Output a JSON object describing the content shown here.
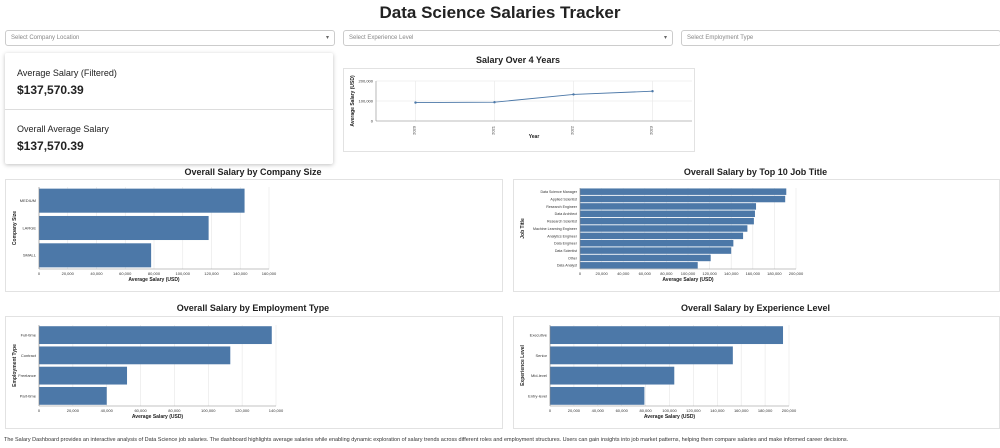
{
  "header": {
    "title": "Data Science Salaries Tracker"
  },
  "filters": [
    {
      "placeholder": "Select Company Location"
    },
    {
      "placeholder": "Select Experience Level"
    },
    {
      "placeholder": "Select Employment Type"
    }
  ],
  "kpis": {
    "filtered": {
      "label": "Average Salary (Filtered)",
      "value": "$137,570.39"
    },
    "overall": {
      "label": "Overall Average Salary",
      "value": "$137,570.39"
    }
  },
  "colors": {
    "bar": "#4c78a8",
    "line": "#4c78a8",
    "grid": "#e6e6e6"
  },
  "chart_data": [
    {
      "id": "line",
      "type": "line",
      "title": "Salary Over 4 Years",
      "xlabel": "Year",
      "ylabel": "Average Salary (USD)",
      "categories": [
        "2020",
        "2021",
        "2022",
        "2023"
      ],
      "values": [
        92000,
        94000,
        133000,
        149000
      ],
      "ylim": [
        0,
        200000
      ],
      "yticks": [
        0,
        100000,
        200000
      ],
      "ytick_labels": [
        "0",
        "100,000",
        "200,000"
      ],
      "grid": true
    },
    {
      "id": "size",
      "type": "bar",
      "orientation": "horizontal",
      "title": "Overall Salary by Company Size",
      "xlabel": "Average Salary (USD)",
      "ylabel": "Company Size",
      "categories": [
        "MEDIUM",
        "LARGE",
        "SMALL"
      ],
      "values": [
        143000,
        118000,
        78000
      ],
      "xlim": [
        0,
        160000
      ],
      "xticks": [
        0,
        20000,
        40000,
        60000,
        80000,
        100000,
        120000,
        140000,
        160000
      ],
      "xtick_labels": [
        "0",
        "20,000",
        "40,000",
        "60,000",
        "80,000",
        "100,000",
        "120,000",
        "140,000",
        "160,000"
      ],
      "grid": true
    },
    {
      "id": "job",
      "type": "bar",
      "orientation": "horizontal",
      "title": "Overall Salary by Top 10 Job Title",
      "xlabel": "Average Salary (USD)",
      "ylabel": "Job Title",
      "categories": [
        "Data Science Manager",
        "Applied Scientist",
        "Research Engineer",
        "Data Architect",
        "Research Scientist",
        "Machine Learning Engineer",
        "Analytics Engineer",
        "Data Engineer",
        "Data Scientist",
        "Other",
        "Data Analyst"
      ],
      "values": [
        191000,
        190000,
        163000,
        162000,
        161000,
        155000,
        151000,
        142000,
        140000,
        121000,
        109000
      ],
      "xlim": [
        0,
        200000
      ],
      "xticks": [
        0,
        20000,
        40000,
        60000,
        80000,
        100000,
        120000,
        140000,
        160000,
        180000,
        200000
      ],
      "xtick_labels": [
        "0",
        "20,000",
        "40,000",
        "60,000",
        "80,000",
        "100,000",
        "120,000",
        "140,000",
        "160,000",
        "180,000",
        "200,000"
      ],
      "grid": true
    },
    {
      "id": "emp",
      "type": "bar",
      "orientation": "horizontal",
      "title": "Overall Salary by Employment Type",
      "xlabel": "Average Salary (USD)",
      "ylabel": "Employment Type",
      "categories": [
        "Full-time",
        "Contract",
        "Freelance",
        "Part-time"
      ],
      "values": [
        137500,
        113000,
        52000,
        40000
      ],
      "xlim": [
        0,
        140000
      ],
      "xticks": [
        0,
        20000,
        40000,
        60000,
        80000,
        100000,
        120000,
        140000
      ],
      "xtick_labels": [
        "0",
        "20,000",
        "40,000",
        "60,000",
        "80,000",
        "100,000",
        "120,000",
        "140,000"
      ],
      "grid": true
    },
    {
      "id": "exp",
      "type": "bar",
      "orientation": "horizontal",
      "title": "Overall Salary by Experience Level",
      "xlabel": "Average Salary (USD)",
      "ylabel": "Experience Level",
      "categories": [
        "Executive",
        "Senior",
        "Mid-level",
        "Entry-level"
      ],
      "values": [
        195000,
        153000,
        104000,
        79000
      ],
      "xlim": [
        0,
        200000
      ],
      "xticks": [
        0,
        20000,
        40000,
        60000,
        80000,
        100000,
        120000,
        140000,
        160000,
        180000,
        200000
      ],
      "xtick_labels": [
        "0",
        "20,000",
        "40,000",
        "60,000",
        "80,000",
        "100,000",
        "120,000",
        "140,000",
        "160,000",
        "180,000",
        "200,000"
      ],
      "grid": true
    }
  ],
  "footer": {
    "text": "The Salary Dashboard provides an interactive analysis of Data Science job salaries. The dashboard highlights average salaries while enabling dynamic exploration of salary trends across different roles and employment structures. Users can gain insights into job market patterns, helping them compare salaries and make informed career decisions."
  }
}
